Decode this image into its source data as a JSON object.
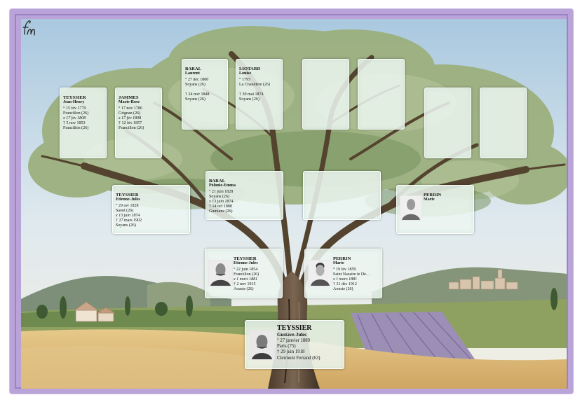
{
  "colors": {
    "frame": "#b9a3d8",
    "card": "#ecf6f0",
    "sky": "#cfe0ea",
    "foliage": "#8fa66e",
    "field": "#d9b874"
  },
  "signature_text": "fm",
  "persons": {
    "p1": {
      "surname": "TEYSSIER",
      "given": "Gustave-Jules",
      "lines": [
        {
          "t": "° 27 janvier 1889",
          "i": false
        },
        {
          "t": "Paris (75)",
          "i": false
        },
        {
          "t": "† 29 juin 1918",
          "i": false
        },
        {
          "t": "Clermont Ferrand (63)",
          "i": false
        }
      ]
    },
    "p2": {
      "surname": "TEYSSIER",
      "given": "Etienne-Jules",
      "lines": [
        {
          "t": "° 22 juin 1854",
          "i": false
        },
        {
          "t": "Francillon (26)",
          "i": false
        },
        {
          "t": "x 1 mars 1881",
          "i": true
        },
        {
          "t": "† 2 nov 1915",
          "i": false
        },
        {
          "t": "Aouste (26)",
          "i": false
        }
      ]
    },
    "p3": {
      "surname": "PERRIN",
      "given": "Marie",
      "lines": [
        {
          "t": "° 19 fév 1859",
          "i": false
        },
        {
          "t": "Saint Nazaire le Dé…",
          "i": false
        },
        {
          "t": "x 1 mars 1881",
          "i": true
        },
        {
          "t": "† 31 déc 1912",
          "i": false
        },
        {
          "t": "Aouste (26)",
          "i": false
        }
      ]
    },
    "p4": {
      "surname": "TEYSSIER",
      "given": "Etienne-Jules",
      "lines": [
        {
          "t": "° 29 avr 1828",
          "i": false
        },
        {
          "t": "Saoul (26)",
          "i": false
        },
        {
          "t": "x 13 juin 1874",
          "i": true
        },
        {
          "t": "† 27 mars 1902",
          "i": false
        },
        {
          "t": "Soyans (26)",
          "i": false
        }
      ]
    },
    "p5": {
      "surname": "BARAL",
      "given": "Polonie-Emma",
      "lines": [
        {
          "t": "° 21 juin 1828",
          "i": false
        },
        {
          "t": "Soyans (26)",
          "i": false
        },
        {
          "t": "x 13 juin 1874",
          "i": true
        },
        {
          "t": "† 14 oct 1888",
          "i": false
        },
        {
          "t": "Gumiane (26)",
          "i": false
        }
      ]
    },
    "p7": {
      "surname": "PERRIN",
      "given": "Marie",
      "lines": []
    },
    "p8": {
      "surname": "TEYSSIER",
      "given": "Jean-Henry",
      "lines": [
        {
          "t": "° 15 fév 1779",
          "i": false
        },
        {
          "t": "Francillon (26)",
          "i": false
        },
        {
          "t": "x 17 fév 1808",
          "i": true
        },
        {
          "t": "† 5 nov 1853",
          "i": false
        },
        {
          "t": "Francillon (26)",
          "i": false
        }
      ]
    },
    "p9": {
      "surname": "JAMMES",
      "given": "Marie-Rose",
      "lines": [
        {
          "t": "° 17 nov 1786",
          "i": false
        },
        {
          "t": "Grignan (26)",
          "i": false
        },
        {
          "t": "x 17 fév 1808",
          "i": true
        },
        {
          "t": "† 12 fév 1857",
          "i": false
        },
        {
          "t": "Francillon (26)",
          "i": false
        }
      ]
    },
    "p10": {
      "surname": "BARAL",
      "given": "Laurent",
      "lines": [
        {
          "t": "° 27 déc 1800",
          "i": false
        },
        {
          "t": "Soyans (26)",
          "i": false
        },
        {
          "t": "",
          "i": false
        },
        {
          "t": "† 24 nov 1848",
          "i": false
        },
        {
          "t": "Soyans (26)",
          "i": false
        }
      ]
    },
    "p11": {
      "surname": "LIOTARD",
      "given": "Louise",
      "lines": [
        {
          "t": "° 1793",
          "i": false
        },
        {
          "t": "La Chaudière (26)",
          "i": false
        },
        {
          "t": "",
          "i": false
        },
        {
          "t": "† 30 mai 1874",
          "i": false
        },
        {
          "t": "Soyans (26)",
          "i": false
        }
      ]
    }
  }
}
